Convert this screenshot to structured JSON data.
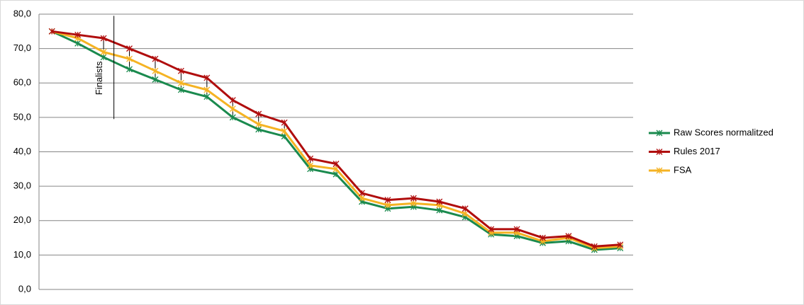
{
  "chart_data": {
    "type": "line",
    "categories": [
      null,
      null,
      null,
      null,
      null,
      null,
      null,
      null,
      null,
      null,
      null,
      null,
      null,
      null,
      null,
      null,
      null,
      null,
      null,
      null,
      null,
      null,
      null
    ],
    "series": [
      {
        "name": "Raw Scores normalitzed",
        "color": "#1a8a4e",
        "values": [
          75,
          71.5,
          67.5,
          64,
          61,
          58,
          56,
          50,
          46.5,
          44.5,
          35,
          33.5,
          25.5,
          23.5,
          24,
          23,
          21,
          16,
          15.5,
          13.5,
          14,
          11.5,
          12
        ]
      },
      {
        "name": "Rules 2017",
        "color": "#b00d0d",
        "values": [
          75,
          74,
          73,
          70,
          67,
          63.5,
          61.5,
          55,
          51,
          48.5,
          38,
          36.5,
          28,
          26,
          26.5,
          25.5,
          23.5,
          17.5,
          17.5,
          15,
          15.5,
          12.5,
          13
        ]
      },
      {
        "name": "FSA",
        "color": "#f5b323",
        "values": [
          75,
          73,
          69,
          67,
          63.5,
          60,
          58,
          52.5,
          48,
          46,
          36,
          35,
          26.5,
          24.5,
          25,
          24.5,
          22,
          16.5,
          16.5,
          14,
          15,
          12,
          12.5
        ]
      }
    ],
    "ylim": [
      0,
      80
    ],
    "yticks": [
      {
        "value": 0,
        "label": "0,0"
      },
      {
        "value": 10,
        "label": "10,0"
      },
      {
        "value": 20,
        "label": "20,0"
      },
      {
        "value": 30,
        "label": "30,0"
      },
      {
        "value": 40,
        "label": "40,0"
      },
      {
        "value": 50,
        "label": "50,0"
      },
      {
        "value": 60,
        "label": "60,0"
      },
      {
        "value": 70,
        "label": "70,0"
      },
      {
        "value": 80,
        "label": "80,0"
      }
    ],
    "grid": true,
    "legend": "right",
    "annotations": [
      {
        "text": "Finalists",
        "index": 2,
        "from": 49.5,
        "to": 79.5
      }
    ]
  }
}
